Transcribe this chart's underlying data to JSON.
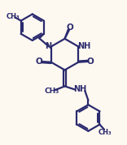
{
  "bg_color": "#fdf8f0",
  "line_color": "#2a2a6e",
  "line_width": 1.6,
  "figsize": [
    1.56,
    1.79
  ],
  "dpi": 100,
  "xlim": [
    0,
    10
  ],
  "ylim": [
    0,
    11.5
  ]
}
